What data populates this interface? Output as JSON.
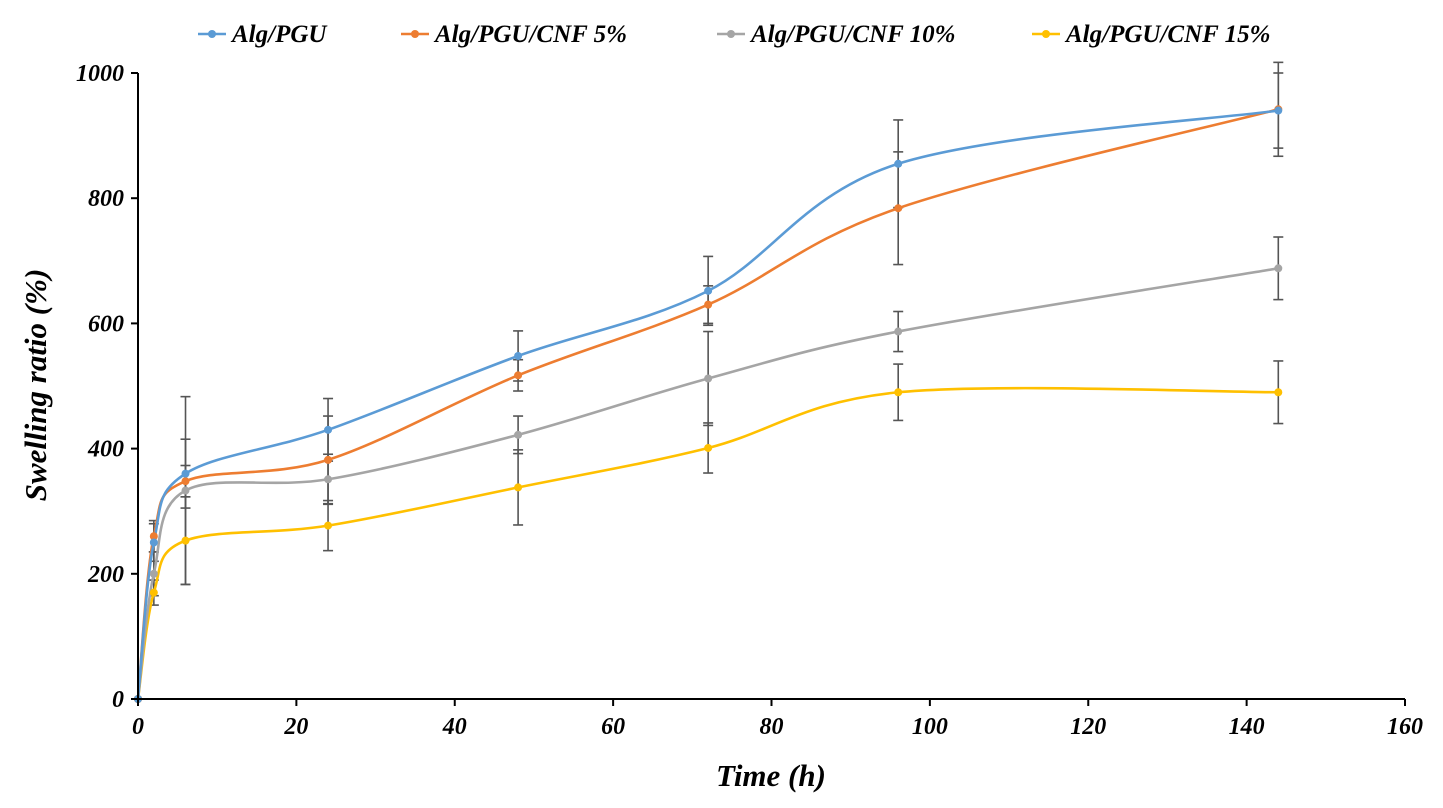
{
  "chart_data": {
    "type": "line",
    "title": "",
    "xlabel": "Time (h)",
    "ylabel": "Swelling ratio (%)",
    "xlim": [
      0,
      160
    ],
    "ylim": [
      0,
      1000
    ],
    "xticks": [
      0,
      20,
      40,
      60,
      80,
      100,
      120,
      140,
      160
    ],
    "yticks": [
      0,
      200,
      400,
      600,
      800,
      1000
    ],
    "legend_position": "top",
    "grid": false,
    "x": [
      0,
      2,
      6,
      24,
      48,
      72,
      96,
      144
    ],
    "series": [
      {
        "name": "Alg/PGU",
        "color": "#5B9BD5",
        "values": [
          0,
          250,
          360,
          430,
          548,
          652,
          855,
          940
        ],
        "errors": [
          0,
          30,
          55,
          50,
          40,
          55,
          70,
          60
        ]
      },
      {
        "name": "Alg/PGU/CNF 5%",
        "color": "#ED7D31",
        "values": [
          0,
          260,
          348,
          382,
          517,
          630,
          784,
          942
        ],
        "errors": [
          0,
          25,
          25,
          70,
          25,
          30,
          90,
          75
        ]
      },
      {
        "name": "Alg/PGU/CNF 10%",
        "color": "#A5A5A5",
        "values": [
          0,
          200,
          333,
          351,
          422,
          512,
          587,
          688
        ],
        "errors": [
          0,
          35,
          150,
          40,
          30,
          75,
          32,
          50
        ]
      },
      {
        "name": "Alg/PGU/CNF 15%",
        "color": "#FFC000",
        "values": [
          0,
          170,
          253,
          277,
          338,
          401,
          490,
          490
        ],
        "errors": [
          0,
          20,
          70,
          40,
          60,
          40,
          45,
          50
        ]
      }
    ]
  }
}
